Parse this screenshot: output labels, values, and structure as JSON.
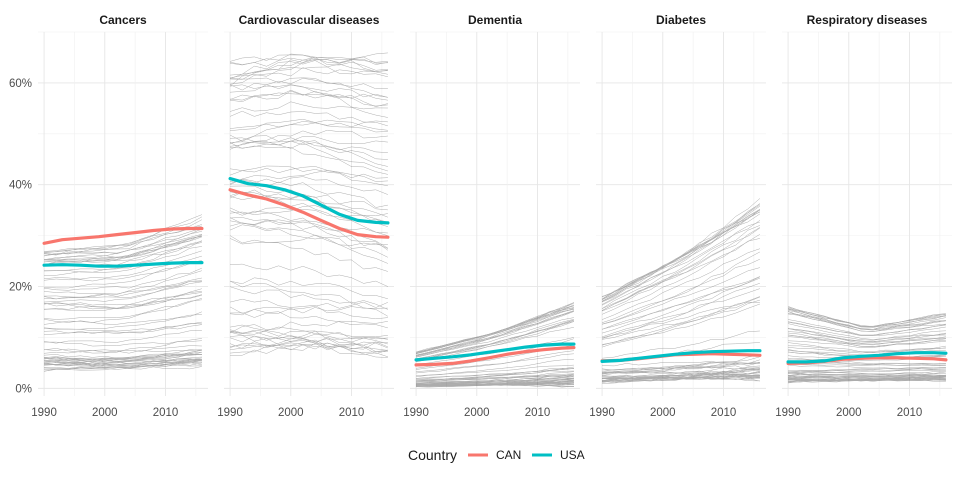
{
  "chart_data": {
    "type": "line",
    "title": "",
    "xlabel": "",
    "ylabel": "",
    "x_ticks": [
      1990,
      2000,
      2010
    ],
    "y_ticks": [
      0,
      20,
      40,
      60
    ],
    "y_tick_labels": [
      "0%",
      "20%",
      "40%",
      "60%"
    ],
    "xlim": [
      1989,
      2017
    ],
    "ylim": [
      -1.5,
      70
    ],
    "grid": true,
    "legend": {
      "title": "Country",
      "position": "bottom",
      "entries": [
        {
          "label": "CAN",
          "color": "#F8766D"
        },
        {
          "label": "USA",
          "color": "#00BFC4"
        }
      ]
    },
    "background_lines_color": "#000000",
    "panels": [
      {
        "label": "Cancers",
        "background_band": {
          "low": [
            4,
            4,
            5
          ],
          "mid": [
            14,
            14,
            17
          ],
          "high": [
            27,
            28,
            33
          ],
          "x": [
            1990,
            2003,
            2016
          ]
        },
        "series": [
          {
            "name": "CAN",
            "x": [
              1990,
              1993,
              1996,
              1999,
              2002,
              2005,
              2008,
              2011,
              2014,
              2016
            ],
            "values": [
              28.5,
              29.2,
              29.5,
              29.8,
              30.2,
              30.6,
              31.0,
              31.3,
              31.4,
              31.4
            ]
          },
          {
            "name": "USA",
            "x": [
              1990,
              1993,
              1996,
              1999,
              2002,
              2005,
              2008,
              2011,
              2014,
              2016
            ],
            "values": [
              24.2,
              24.3,
              24.2,
              24.0,
              24.0,
              24.2,
              24.4,
              24.6,
              24.7,
              24.7
            ]
          }
        ]
      },
      {
        "label": "Cardiovascular diseases",
        "background_band": {
          "low": [
            8,
            8,
            7
          ],
          "mid": [
            35,
            34,
            30
          ],
          "high": [
            63,
            66,
            65
          ],
          "x": [
            1990,
            2003,
            2016
          ]
        },
        "series": [
          {
            "name": "CAN",
            "x": [
              1990,
              1993,
              1996,
              1999,
              2002,
              2005,
              2008,
              2011,
              2014,
              2016
            ],
            "values": [
              39.0,
              38.0,
              37.2,
              36.0,
              34.6,
              33.0,
              31.4,
              30.2,
              29.8,
              29.7
            ]
          },
          {
            "name": "USA",
            "x": [
              1990,
              1993,
              1996,
              1999,
              2002,
              2005,
              2008,
              2011,
              2014,
              2016
            ],
            "values": [
              41.2,
              40.2,
              39.8,
              39.0,
              37.8,
              36.0,
              34.2,
              33.0,
              32.6,
              32.5
            ]
          }
        ]
      },
      {
        "label": "Dementia",
        "background_band": {
          "low": [
            0.5,
            0.6,
            0.8
          ],
          "mid": [
            2,
            3,
            4.5
          ],
          "high": [
            7,
            11,
            16.5
          ],
          "x": [
            1990,
            2003,
            2016
          ]
        },
        "series": [
          {
            "name": "CAN",
            "x": [
              1990,
              1993,
              1996,
              1999,
              2002,
              2005,
              2008,
              2011,
              2014,
              2016
            ],
            "values": [
              4.6,
              4.7,
              4.9,
              5.4,
              6.0,
              6.7,
              7.2,
              7.6,
              7.9,
              8.0
            ]
          },
          {
            "name": "USA",
            "x": [
              1990,
              1993,
              1996,
              1999,
              2002,
              2005,
              2008,
              2011,
              2014,
              2016
            ],
            "values": [
              5.6,
              5.9,
              6.2,
              6.6,
              7.1,
              7.6,
              8.1,
              8.5,
              8.7,
              8.7
            ]
          }
        ]
      },
      {
        "label": "Diabetes",
        "background_band": {
          "low": [
            1.5,
            1.8,
            2.5
          ],
          "mid": [
            4,
            5,
            6
          ],
          "high": [
            17.5,
            26,
            36
          ],
          "x": [
            1990,
            2003,
            2016
          ]
        },
        "series": [
          {
            "name": "CAN",
            "x": [
              1990,
              1993,
              1996,
              1999,
              2002,
              2005,
              2008,
              2011,
              2014,
              2016
            ],
            "values": [
              5.4,
              5.5,
              5.8,
              6.2,
              6.6,
              6.7,
              6.8,
              6.7,
              6.6,
              6.5
            ]
          },
          {
            "name": "USA",
            "x": [
              1990,
              1993,
              1996,
              1999,
              2002,
              2005,
              2008,
              2011,
              2014,
              2016
            ],
            "values": [
              5.3,
              5.5,
              5.9,
              6.3,
              6.7,
              7.0,
              7.2,
              7.3,
              7.4,
              7.4
            ]
          }
        ]
      },
      {
        "label": "Respiratory diseases",
        "background_band": {
          "low": [
            1.5,
            1.5,
            1.8
          ],
          "mid": [
            4,
            4,
            4
          ],
          "high": [
            16,
            12,
            14.5
          ],
          "x": [
            1990,
            2003,
            2016
          ]
        },
        "series": [
          {
            "name": "CAN",
            "x": [
              1990,
              1993,
              1996,
              1999,
              2002,
              2005,
              2008,
              2011,
              2014,
              2016
            ],
            "values": [
              4.9,
              5.0,
              5.3,
              5.7,
              5.9,
              6.0,
              6.0,
              5.9,
              5.8,
              5.6
            ]
          },
          {
            "name": "USA",
            "x": [
              1990,
              1993,
              1996,
              1999,
              2002,
              2005,
              2008,
              2011,
              2014,
              2016
            ],
            "values": [
              5.2,
              5.2,
              5.4,
              6.0,
              6.3,
              6.5,
              6.8,
              7.0,
              7.0,
              6.9
            ]
          }
        ]
      }
    ]
  }
}
